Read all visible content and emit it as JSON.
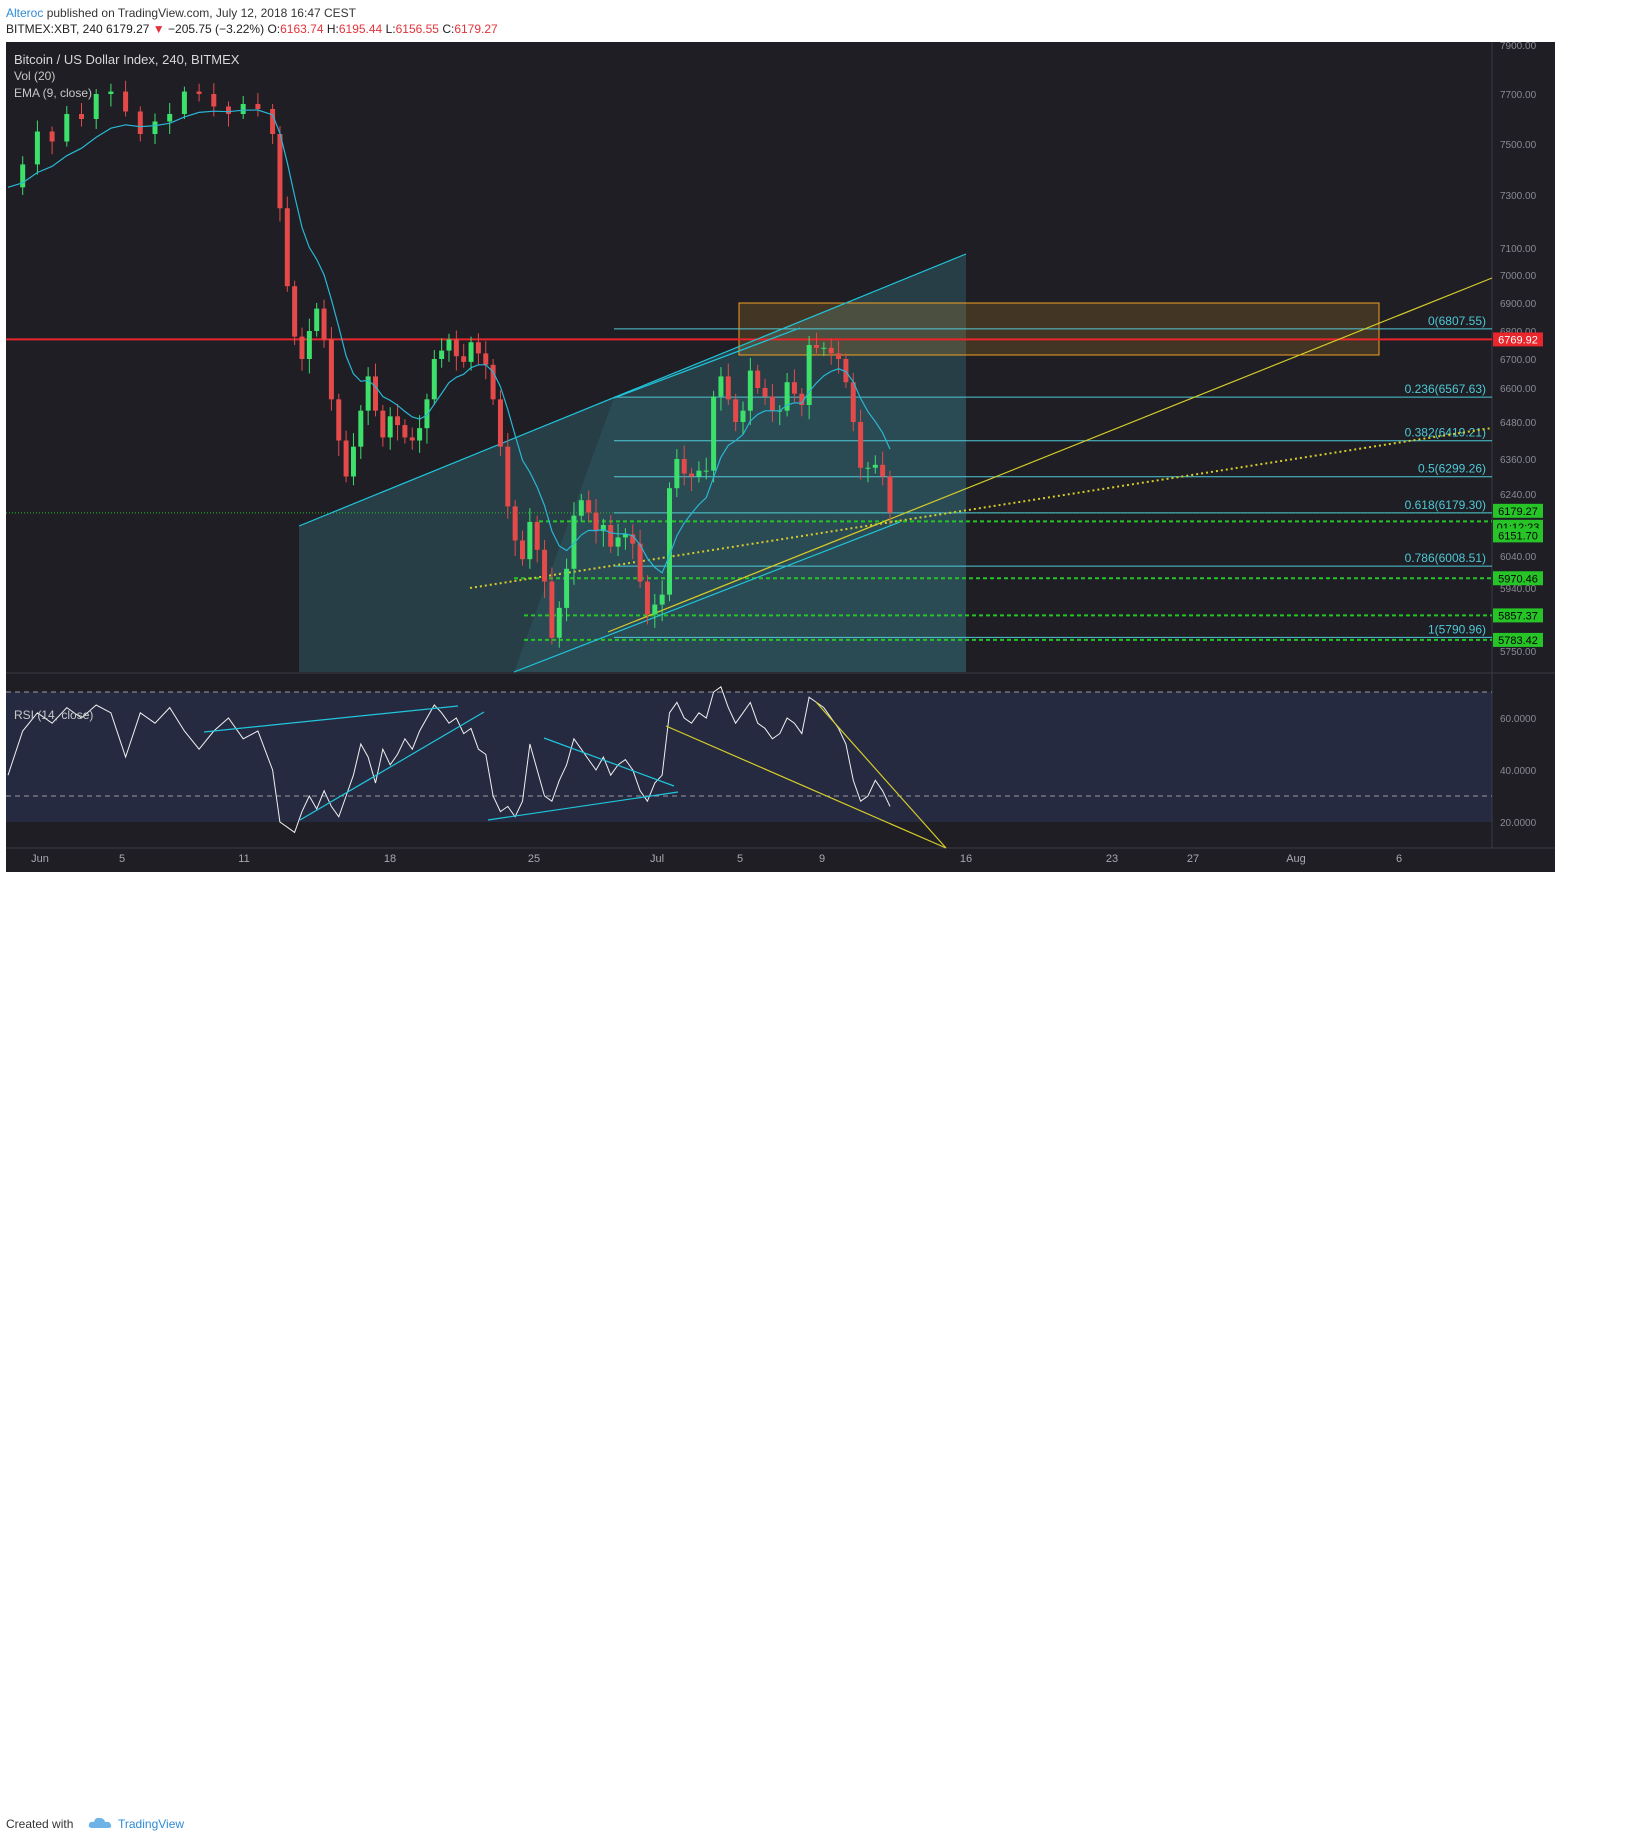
{
  "header": {
    "author": "Alteroc",
    "published_text": " published on TradingView.com, July 12, 2018 16:47 CEST",
    "symbol": "BITMEX:XBT, 240",
    "last": "6179.27",
    "change_arrow": "▼",
    "change": "−205.75 (−3.22%)",
    "o_label": "O:",
    "o_val": "6163.74",
    "h_label": "H:",
    "h_val": "6195.44",
    "l_label": "L:",
    "l_val": "6156.55",
    "c_label": "C:",
    "c_val": "6179.27"
  },
  "footer": {
    "created_with": "Created with",
    "brand": "TradingView"
  },
  "chart_data": {
    "type": "candlestick",
    "legend": {
      "title": "Bitcoin / US Dollar Index, 240, BITMEX",
      "vol": "Vol (20)",
      "ema": "EMA (9, close)"
    },
    "price_axis": [
      "7900.00",
      "7700.00",
      "7500.00",
      "7300.00",
      "7100.00",
      "7000.00",
      "6900.00",
      "6800.00",
      "6700.00",
      "6600.00",
      "6480.00",
      "6360.00",
      "6240.00",
      "6040.00",
      "5940.00",
      "5750.00"
    ],
    "time_axis": [
      "Jun",
      "5",
      "11",
      "18",
      "25",
      "Jul",
      "5",
      "9",
      "16",
      "23",
      "27",
      "Aug",
      "6"
    ],
    "price_close_path": [
      [
        0,
        7330
      ],
      [
        2,
        7420
      ],
      [
        4,
        7550
      ],
      [
        6,
        7510
      ],
      [
        8,
        7620
      ],
      [
        10,
        7600
      ],
      [
        12,
        7700
      ],
      [
        14,
        7710
      ],
      [
        16,
        7630
      ],
      [
        18,
        7540
      ],
      [
        20,
        7590
      ],
      [
        22,
        7620
      ],
      [
        24,
        7710
      ],
      [
        26,
        7700
      ],
      [
        28,
        7650
      ],
      [
        30,
        7620
      ],
      [
        32,
        7660
      ],
      [
        34,
        7640
      ],
      [
        36,
        7540
      ],
      [
        37,
        7250
      ],
      [
        38,
        6960
      ],
      [
        39,
        6780
      ],
      [
        40,
        6700
      ],
      [
        41,
        6800
      ],
      [
        42,
        6880
      ],
      [
        43,
        6770
      ],
      [
        44,
        6560
      ],
      [
        45,
        6420
      ],
      [
        46,
        6300
      ],
      [
        47,
        6400
      ],
      [
        48,
        6520
      ],
      [
        49,
        6640
      ],
      [
        50,
        6520
      ],
      [
        51,
        6430
      ],
      [
        52,
        6500
      ],
      [
        53,
        6470
      ],
      [
        54,
        6430
      ],
      [
        55,
        6420
      ],
      [
        56,
        6460
      ],
      [
        57,
        6560
      ],
      [
        58,
        6700
      ],
      [
        59,
        6730
      ],
      [
        60,
        6770
      ],
      [
        61,
        6710
      ],
      [
        62,
        6690
      ],
      [
        63,
        6760
      ],
      [
        64,
        6720
      ],
      [
        65,
        6680
      ],
      [
        66,
        6560
      ],
      [
        67,
        6400
      ],
      [
        68,
        6200
      ],
      [
        69,
        6090
      ],
      [
        70,
        6030
      ],
      [
        71,
        6150
      ],
      [
        72,
        6060
      ],
      [
        73,
        5960
      ],
      [
        74,
        5790
      ],
      [
        75,
        5880
      ],
      [
        76,
        6000
      ],
      [
        77,
        6170
      ],
      [
        78,
        6220
      ],
      [
        79,
        6180
      ],
      [
        80,
        6120
      ],
      [
        81,
        6140
      ],
      [
        82,
        6070
      ],
      [
        83,
        6100
      ],
      [
        84,
        6110
      ],
      [
        85,
        6080
      ],
      [
        86,
        5960
      ],
      [
        87,
        5860
      ],
      [
        88,
        5890
      ],
      [
        89,
        5920
      ],
      [
        90,
        6260
      ],
      [
        91,
        6360
      ],
      [
        92,
        6310
      ],
      [
        93,
        6300
      ],
      [
        94,
        6320
      ],
      [
        95,
        6320
      ],
      [
        96,
        6570
      ],
      [
        97,
        6640
      ],
      [
        98,
        6560
      ],
      [
        99,
        6480
      ],
      [
        100,
        6520
      ],
      [
        101,
        6660
      ],
      [
        102,
        6600
      ],
      [
        103,
        6570
      ],
      [
        104,
        6520
      ],
      [
        105,
        6520
      ],
      [
        106,
        6620
      ],
      [
        107,
        6580
      ],
      [
        108,
        6540
      ],
      [
        109,
        6750
      ],
      [
        110,
        6740
      ],
      [
        111,
        6740
      ],
      [
        112,
        6720
      ],
      [
        113,
        6700
      ],
      [
        114,
        6620
      ],
      [
        115,
        6480
      ],
      [
        116,
        6330
      ],
      [
        117,
        6330
      ],
      [
        118,
        6340
      ],
      [
        119,
        6300
      ],
      [
        120,
        6180
      ]
    ],
    "rsi": {
      "label": "RSI (14, close)",
      "axis": [
        "60.0000",
        "40.0000",
        "20.0000"
      ],
      "upper_band": 70,
      "lower_band": 30,
      "values": [
        [
          0,
          38
        ],
        [
          2,
          55
        ],
        [
          4,
          62
        ],
        [
          6,
          58
        ],
        [
          8,
          64
        ],
        [
          10,
          60
        ],
        [
          12,
          65
        ],
        [
          14,
          62
        ],
        [
          16,
          45
        ],
        [
          18,
          62
        ],
        [
          20,
          58
        ],
        [
          22,
          64
        ],
        [
          24,
          55
        ],
        [
          26,
          48
        ],
        [
          28,
          55
        ],
        [
          30,
          60
        ],
        [
          32,
          52
        ],
        [
          34,
          55
        ],
        [
          36,
          40
        ],
        [
          37,
          20
        ],
        [
          38,
          18
        ],
        [
          39,
          16
        ],
        [
          40,
          24
        ],
        [
          41,
          30
        ],
        [
          42,
          25
        ],
        [
          43,
          32
        ],
        [
          44,
          26
        ],
        [
          45,
          22
        ],
        [
          46,
          30
        ],
        [
          47,
          38
        ],
        [
          48,
          50
        ],
        [
          49,
          45
        ],
        [
          50,
          35
        ],
        [
          51,
          48
        ],
        [
          52,
          42
        ],
        [
          53,
          46
        ],
        [
          54,
          52
        ],
        [
          55,
          48
        ],
        [
          56,
          55
        ],
        [
          57,
          60
        ],
        [
          58,
          65
        ],
        [
          59,
          62
        ],
        [
          60,
          58
        ],
        [
          61,
          60
        ],
        [
          62,
          54
        ],
        [
          63,
          56
        ],
        [
          64,
          48
        ],
        [
          65,
          46
        ],
        [
          66,
          30
        ],
        [
          67,
          24
        ],
        [
          68,
          26
        ],
        [
          69,
          22
        ],
        [
          70,
          28
        ],
        [
          71,
          50
        ],
        [
          72,
          40
        ],
        [
          73,
          30
        ],
        [
          74,
          28
        ],
        [
          75,
          36
        ],
        [
          76,
          42
        ],
        [
          77,
          52
        ],
        [
          78,
          48
        ],
        [
          79,
          44
        ],
        [
          80,
          40
        ],
        [
          81,
          45
        ],
        [
          82,
          38
        ],
        [
          83,
          42
        ],
        [
          84,
          44
        ],
        [
          85,
          40
        ],
        [
          86,
          32
        ],
        [
          87,
          28
        ],
        [
          88,
          35
        ],
        [
          89,
          38
        ],
        [
          90,
          62
        ],
        [
          91,
          66
        ],
        [
          92,
          60
        ],
        [
          93,
          58
        ],
        [
          94,
          62
        ],
        [
          95,
          60
        ],
        [
          96,
          70
        ],
        [
          97,
          72
        ],
        [
          98,
          64
        ],
        [
          99,
          58
        ],
        [
          100,
          62
        ],
        [
          101,
          66
        ],
        [
          102,
          58
        ],
        [
          103,
          56
        ],
        [
          104,
          52
        ],
        [
          105,
          54
        ],
        [
          106,
          60
        ],
        [
          107,
          58
        ],
        [
          108,
          54
        ],
        [
          109,
          68
        ],
        [
          110,
          66
        ],
        [
          111,
          64
        ],
        [
          112,
          60
        ],
        [
          113,
          56
        ],
        [
          114,
          50
        ],
        [
          115,
          36
        ],
        [
          116,
          28
        ],
        [
          117,
          30
        ],
        [
          118,
          36
        ],
        [
          119,
          32
        ],
        [
          120,
          26
        ]
      ]
    },
    "fibonacci": [
      {
        "label": "0(6807.55)",
        "value": 6807.55
      },
      {
        "label": "0.236(6567.63)",
        "value": 6567.63
      },
      {
        "label": "0.382(6419.21)",
        "value": 6419.21
      },
      {
        "label": "0.5(6299.26)",
        "value": 6299.26
      },
      {
        "label": "0.618(6179.30)",
        "value": 6179.3
      },
      {
        "label": "0.786(6008.51)",
        "value": 6008.51
      },
      {
        "label": "1(5790.96)",
        "value": 5790.96
      }
    ],
    "horizontal_levels": [
      {
        "label": "6769.92",
        "value": 6769.92,
        "color": "#e8262b"
      },
      {
        "label": "6179.27",
        "value": 6179.27,
        "color": "#27c427"
      },
      {
        "label": "01:12:23",
        "value": 6165,
        "color": "#27c427"
      },
      {
        "label": "6151.70",
        "value": 6151.7,
        "color": "#27c427"
      },
      {
        "label": "5970.46",
        "value": 5970.46,
        "color": "#27c427"
      },
      {
        "label": "5857.37",
        "value": 5857.37,
        "color": "#27c427"
      },
      {
        "label": "5783.42",
        "value": 5783.42,
        "color": "#27c427"
      }
    ],
    "colors": {
      "background": "#1e1e24",
      "rsi_background": "#262a40",
      "up": "#3ce06b",
      "down": "#e44a4a",
      "ema": "#29b6d6",
      "channel": "#1fc6dc",
      "trend": "#d6cc2a",
      "fib": "#4fc9d6",
      "resistance": "#e8262b",
      "support": "#27c427",
      "zone": "#f0a020"
    }
  }
}
